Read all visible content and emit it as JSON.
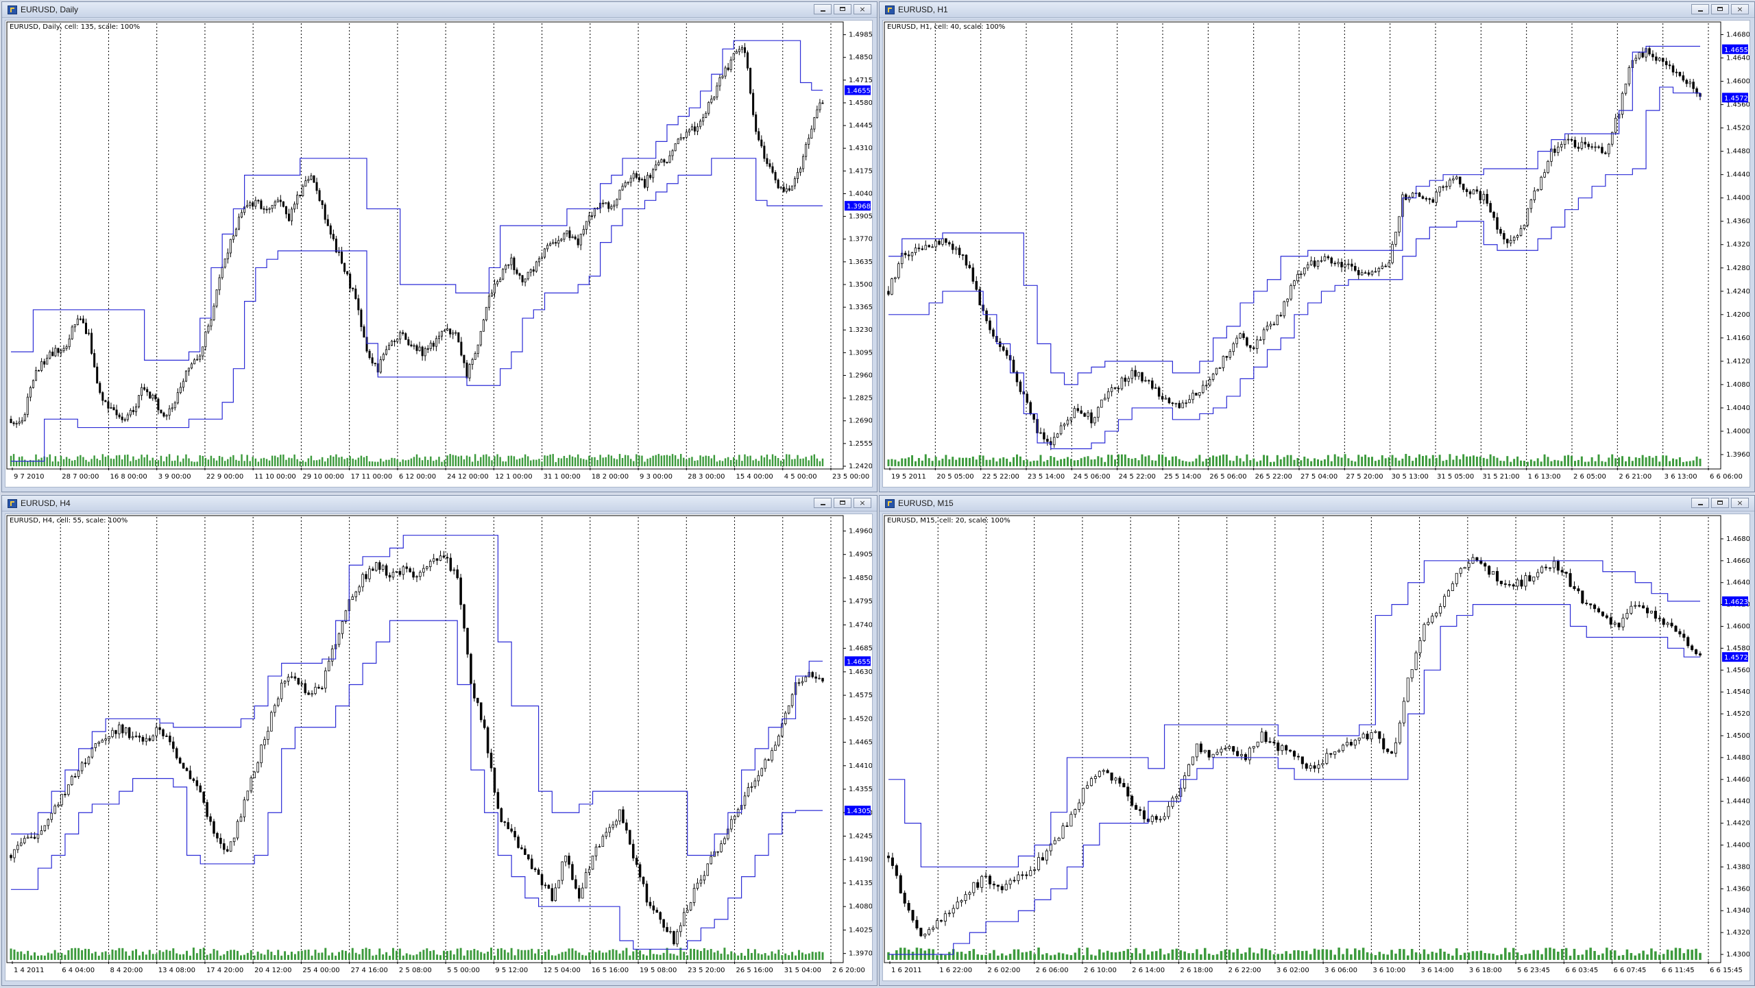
{
  "windows": [
    {
      "id": "daily",
      "title": "EURUSD, Daily",
      "info": "EURUSD, Daily, cell: 135, scale: 100%",
      "controls": {
        "minimize": "minimize",
        "restore": "restore",
        "close": "×"
      }
    },
    {
      "id": "h1",
      "title": "EURUSD, H1",
      "info": "EURUSD, H1, cell: 40, scale: 100%",
      "controls": {
        "minimize": "minimize",
        "restore": "restore",
        "close": "×"
      }
    },
    {
      "id": "h4",
      "title": "EURUSD, H4",
      "info": "EURUSD, H4, cell: 55, scale: 100%",
      "controls": {
        "minimize": "minimize",
        "restore": "restore",
        "close": "×"
      }
    },
    {
      "id": "m15",
      "title": "EURUSD, M15",
      "info": "EURUSD, M15, cell: 20, scale: 100%",
      "controls": {
        "minimize": "minimize",
        "restore": "restore",
        "close": "×"
      }
    }
  ],
  "chart_data": [
    {
      "type": "candlestick",
      "title": "EURUSD, Daily",
      "ylim": [
        1.242,
        1.502
      ],
      "y_ticks": [
        "1.4985",
        "1.4850",
        "1.4715",
        "1.4580",
        "1.4445",
        "1.4310",
        "1.4175",
        "1.4040",
        "1.3905",
        "1.3770",
        "1.3635",
        "1.3500",
        "1.3365",
        "1.3230",
        "1.3095",
        "1.2960",
        "1.2825",
        "1.2690",
        "1.2555",
        "1.2420"
      ],
      "x_ticks": [
        "9 7 2010",
        "28 7 00:00",
        "16 8 00:00",
        "3 9 00:00",
        "22 9 00:00",
        "11 10 00:00",
        "29 10 00:00",
        "17 11 00:00",
        "6 12 00:00",
        "24 12 00:00",
        "12 1 00:00",
        "31 1 00:00",
        "18 2 00:00",
        "9 3 00:00",
        "28 3 00:00",
        "15 4 00:00",
        "4 5 00:00",
        "23 5 00:00"
      ],
      "price_labels": [
        {
          "value": "1.4655",
          "color": "#0000ff"
        },
        {
          "value": "1.3968",
          "color": "#0000ff"
        }
      ],
      "price_label_levels": [
        1.4655,
        1.3968
      ],
      "close_path": [
        1.27,
        1.268,
        1.295,
        1.305,
        1.31,
        1.315,
        1.33,
        1.32,
        1.285,
        1.275,
        1.268,
        1.275,
        1.29,
        1.28,
        1.27,
        1.285,
        1.3,
        1.31,
        1.33,
        1.36,
        1.38,
        1.395,
        1.4,
        1.395,
        1.4,
        1.39,
        1.405,
        1.415,
        1.395,
        1.375,
        1.36,
        1.34,
        1.31,
        1.3,
        1.315,
        1.32,
        1.315,
        1.31,
        1.315,
        1.325,
        1.32,
        1.295,
        1.315,
        1.345,
        1.355,
        1.365,
        1.35,
        1.36,
        1.37,
        1.375,
        1.38,
        1.375,
        1.39,
        1.4,
        1.395,
        1.41,
        1.415,
        1.41,
        1.42,
        1.425,
        1.435,
        1.44,
        1.445,
        1.46,
        1.475,
        1.485,
        1.49,
        1.44,
        1.42,
        1.41,
        1.405,
        1.42,
        1.445,
        1.46
      ],
      "channel_upper": [
        1.31,
        1.31,
        1.335,
        1.335,
        1.335,
        1.335,
        1.335,
        1.335,
        1.335,
        1.335,
        1.335,
        1.335,
        1.305,
        1.305,
        1.305,
        1.305,
        1.31,
        1.33,
        1.36,
        1.38,
        1.395,
        1.415,
        1.415,
        1.415,
        1.415,
        1.415,
        1.425,
        1.425,
        1.425,
        1.425,
        1.425,
        1.425,
        1.395,
        1.395,
        1.395,
        1.35,
        1.35,
        1.35,
        1.35,
        1.35,
        1.345,
        1.345,
        1.345,
        1.36,
        1.385,
        1.385,
        1.385,
        1.385,
        1.385,
        1.385,
        1.395,
        1.395,
        1.395,
        1.41,
        1.415,
        1.425,
        1.425,
        1.425,
        1.435,
        1.445,
        1.45,
        1.455,
        1.465,
        1.475,
        1.49,
        1.495,
        1.495,
        1.495,
        1.495,
        1.495,
        1.495,
        1.47,
        1.4655,
        1.4655
      ],
      "channel_lower": [
        1.245,
        1.245,
        1.245,
        1.27,
        1.27,
        1.27,
        1.265,
        1.265,
        1.265,
        1.265,
        1.265,
        1.265,
        1.265,
        1.265,
        1.265,
        1.265,
        1.27,
        1.27,
        1.27,
        1.28,
        1.3,
        1.34,
        1.36,
        1.365,
        1.37,
        1.37,
        1.37,
        1.37,
        1.37,
        1.37,
        1.37,
        1.37,
        1.315,
        1.295,
        1.295,
        1.295,
        1.295,
        1.295,
        1.295,
        1.295,
        1.295,
        1.29,
        1.29,
        1.29,
        1.3,
        1.31,
        1.33,
        1.335,
        1.345,
        1.345,
        1.345,
        1.35,
        1.355,
        1.375,
        1.385,
        1.395,
        1.395,
        1.4,
        1.405,
        1.41,
        1.415,
        1.415,
        1.415,
        1.425,
        1.425,
        1.425,
        1.425,
        1.4,
        1.3968,
        1.3968,
        1.3968,
        1.3968,
        1.3968,
        1.3968
      ]
    },
    {
      "type": "candlestick",
      "title": "EURUSD, H1",
      "ylim": [
        1.394,
        1.469
      ],
      "y_ticks": [
        "1.4680",
        "1.4640",
        "1.4600",
        "1.4560",
        "1.4520",
        "1.4480",
        "1.4440",
        "1.4400",
        "1.4360",
        "1.4320",
        "1.4280",
        "1.4240",
        "1.4200",
        "1.4160",
        "1.4120",
        "1.4080",
        "1.4040",
        "1.4000",
        "1.3960"
      ],
      "x_ticks": [
        "19 5 2011",
        "20 5 05:00",
        "22 5 22:00",
        "23 5 14:00",
        "24 5 06:00",
        "24 5 22:00",
        "25 5 14:00",
        "26 5 06:00",
        "26 5 22:00",
        "27 5 04:00",
        "27 5 20:00",
        "30 5 13:00",
        "31 5 05:00",
        "31 5 21:00",
        "1 6 13:00",
        "2 6 05:00",
        "2 6 21:00",
        "3 6 13:00",
        "6 6 06:00"
      ],
      "price_labels": [
        {
          "value": "1.4655",
          "color": "#0000ff"
        },
        {
          "value": "1.4572",
          "color": "#0000ff"
        }
      ],
      "price_label_levels": [
        1.4655,
        1.4572
      ],
      "close_path": [
        1.424,
        1.43,
        1.431,
        1.432,
        1.433,
        1.431,
        1.428,
        1.42,
        1.415,
        1.412,
        1.406,
        1.4,
        1.398,
        1.401,
        1.404,
        1.402,
        1.406,
        1.408,
        1.41,
        1.409,
        1.406,
        1.404,
        1.405,
        1.407,
        1.41,
        1.413,
        1.416,
        1.414,
        1.418,
        1.42,
        1.426,
        1.428,
        1.43,
        1.429,
        1.428,
        1.427,
        1.428,
        1.429,
        1.44,
        1.441,
        1.439,
        1.442,
        1.443,
        1.441,
        1.44,
        1.435,
        1.432,
        1.436,
        1.442,
        1.448,
        1.45,
        1.449,
        1.449,
        1.447,
        1.455,
        1.464,
        1.465,
        1.464,
        1.462,
        1.46,
        1.458
      ],
      "channel_upper": [
        1.43,
        1.433,
        1.433,
        1.433,
        1.434,
        1.434,
        1.434,
        1.434,
        1.434,
        1.434,
        1.425,
        1.415,
        1.41,
        1.408,
        1.41,
        1.411,
        1.412,
        1.412,
        1.412,
        1.412,
        1.412,
        1.41,
        1.41,
        1.412,
        1.416,
        1.418,
        1.422,
        1.424,
        1.426,
        1.43,
        1.43,
        1.431,
        1.431,
        1.431,
        1.431,
        1.431,
        1.431,
        1.431,
        1.44,
        1.442,
        1.443,
        1.444,
        1.444,
        1.444,
        1.445,
        1.445,
        1.445,
        1.445,
        1.448,
        1.45,
        1.451,
        1.451,
        1.451,
        1.451,
        1.455,
        1.465,
        1.466,
        1.466,
        1.466,
        1.466,
        1.466
      ],
      "channel_lower": [
        1.42,
        1.42,
        1.42,
        1.422,
        1.424,
        1.424,
        1.424,
        1.42,
        1.415,
        1.41,
        1.403,
        1.398,
        1.397,
        1.397,
        1.397,
        1.398,
        1.4,
        1.402,
        1.404,
        1.404,
        1.404,
        1.402,
        1.402,
        1.403,
        1.404,
        1.406,
        1.409,
        1.411,
        1.414,
        1.416,
        1.42,
        1.422,
        1.424,
        1.425,
        1.426,
        1.426,
        1.426,
        1.426,
        1.43,
        1.433,
        1.435,
        1.435,
        1.436,
        1.436,
        1.432,
        1.431,
        1.431,
        1.431,
        1.433,
        1.435,
        1.438,
        1.44,
        1.442,
        1.444,
        1.444,
        1.445,
        1.455,
        1.459,
        1.458,
        1.458,
        1.4572
      ]
    },
    {
      "type": "candlestick",
      "title": "EURUSD, H4",
      "ylim": [
        1.3955,
        1.498
      ],
      "y_ticks": [
        "1.4960",
        "1.4905",
        "1.4850",
        "1.4795",
        "1.4740",
        "1.4685",
        "1.4630",
        "1.4575",
        "1.4520",
        "1.4465",
        "1.4410",
        "1.4355",
        "1.4300",
        "1.4245",
        "1.4190",
        "1.4135",
        "1.4080",
        "1.4025",
        "1.3970"
      ],
      "x_ticks": [
        "1 4 2011",
        "6 4 04:00",
        "8 4 20:00",
        "13 4 08:00",
        "17 4 20:00",
        "20 4 12:00",
        "25 4 00:00",
        "27 4 16:00",
        "2 5 08:00",
        "5 5 00:00",
        "9 5 12:00",
        "12 5 04:00",
        "16 5 16:00",
        "19 5 08:00",
        "23 5 20:00",
        "26 5 16:00",
        "31 5 04:00",
        "2 6 20:00"
      ],
      "price_labels": [
        {
          "value": "1.4655",
          "color": "#0000ff"
        },
        {
          "value": "1.4305",
          "color": "#0000ff"
        }
      ],
      "price_label_levels": [
        1.4655,
        1.4305
      ],
      "close_path": [
        1.42,
        1.423,
        1.425,
        1.43,
        1.435,
        1.44,
        1.445,
        1.448,
        1.45,
        1.448,
        1.447,
        1.45,
        1.445,
        1.44,
        1.435,
        1.425,
        1.42,
        1.43,
        1.44,
        1.45,
        1.46,
        1.462,
        1.458,
        1.46,
        1.47,
        1.48,
        1.485,
        1.488,
        1.486,
        1.487,
        1.485,
        1.488,
        1.49,
        1.485,
        1.46,
        1.45,
        1.43,
        1.425,
        1.42,
        1.415,
        1.41,
        1.42,
        1.41,
        1.42,
        1.425,
        1.43,
        1.42,
        1.41,
        1.405,
        1.4,
        1.408,
        1.415,
        1.42,
        1.426,
        1.432,
        1.438,
        1.443,
        1.45,
        1.46,
        1.463,
        1.461
      ],
      "channel_upper": [
        1.425,
        1.425,
        1.43,
        1.435,
        1.44,
        1.445,
        1.449,
        1.452,
        1.452,
        1.452,
        1.452,
        1.451,
        1.45,
        1.45,
        1.45,
        1.45,
        1.45,
        1.452,
        1.455,
        1.462,
        1.465,
        1.465,
        1.465,
        1.466,
        1.475,
        1.488,
        1.49,
        1.49,
        1.492,
        1.495,
        1.495,
        1.495,
        1.495,
        1.495,
        1.495,
        1.495,
        1.47,
        1.455,
        1.455,
        1.435,
        1.43,
        1.43,
        1.432,
        1.435,
        1.435,
        1.435,
        1.435,
        1.435,
        1.435,
        1.435,
        1.42,
        1.42,
        1.425,
        1.43,
        1.44,
        1.445,
        1.45,
        1.452,
        1.462,
        1.4655,
        1.4655
      ],
      "channel_lower": [
        1.412,
        1.412,
        1.417,
        1.42,
        1.425,
        1.43,
        1.432,
        1.432,
        1.435,
        1.438,
        1.438,
        1.438,
        1.436,
        1.42,
        1.418,
        1.418,
        1.418,
        1.418,
        1.42,
        1.43,
        1.445,
        1.45,
        1.45,
        1.45,
        1.455,
        1.46,
        1.465,
        1.47,
        1.475,
        1.475,
        1.475,
        1.475,
        1.475,
        1.46,
        1.44,
        1.43,
        1.42,
        1.415,
        1.41,
        1.408,
        1.408,
        1.408,
        1.408,
        1.408,
        1.408,
        1.4,
        1.398,
        1.398,
        1.398,
        1.398,
        1.4,
        1.403,
        1.405,
        1.41,
        1.415,
        1.42,
        1.425,
        1.43,
        1.4305,
        1.4305,
        1.4305
      ]
    },
    {
      "type": "candlestick",
      "title": "EURUSD, M15",
      "ylim": [
        1.4295,
        1.4695
      ],
      "y_ticks": [
        "1.4680",
        "1.4660",
        "1.4640",
        "1.4620",
        "1.4600",
        "1.4580",
        "1.4560",
        "1.4540",
        "1.4520",
        "1.4500",
        "1.4480",
        "1.4460",
        "1.4440",
        "1.4420",
        "1.4400",
        "1.4380",
        "1.4360",
        "1.4340",
        "1.4320",
        "1.4300"
      ],
      "x_ticks": [
        "1 6 2011",
        "1 6 22:00",
        "2 6 02:00",
        "2 6 06:00",
        "2 6 10:00",
        "2 6 14:00",
        "2 6 18:00",
        "2 6 22:00",
        "3 6 02:00",
        "3 6 06:00",
        "3 6 10:00",
        "3 6 14:00",
        "3 6 18:00",
        "5 6 23:45",
        "6 6 03:45",
        "6 6 07:45",
        "6 6 11:45",
        "6 6 15:45"
      ],
      "price_labels": [
        {
          "value": "1.4623",
          "color": "#0000ff"
        },
        {
          "value": "1.4572",
          "color": "#0000ff"
        }
      ],
      "price_label_levels": [
        1.4623,
        1.4572
      ],
      "close_path": [
        1.439,
        1.435,
        1.432,
        1.433,
        1.434,
        1.436,
        1.437,
        1.436,
        1.437,
        1.438,
        1.44,
        1.442,
        1.445,
        1.447,
        1.446,
        1.444,
        1.442,
        1.443,
        1.445,
        1.449,
        1.448,
        1.449,
        1.448,
        1.45,
        1.449,
        1.448,
        1.447,
        1.448,
        1.449,
        1.45,
        1.45,
        1.448,
        1.455,
        1.46,
        1.462,
        1.465,
        1.466,
        1.465,
        1.464,
        1.464,
        1.465,
        1.466,
        1.464,
        1.462,
        1.461,
        1.46,
        1.462,
        1.461,
        1.46,
        1.459,
        1.4572
      ],
      "channel_upper": [
        1.446,
        1.442,
        1.438,
        1.438,
        1.438,
        1.438,
        1.438,
        1.438,
        1.439,
        1.44,
        1.443,
        1.448,
        1.448,
        1.448,
        1.448,
        1.448,
        1.447,
        1.451,
        1.451,
        1.451,
        1.451,
        1.451,
        1.451,
        1.451,
        1.45,
        1.45,
        1.45,
        1.45,
        1.45,
        1.451,
        1.461,
        1.462,
        1.464,
        1.466,
        1.466,
        1.466,
        1.466,
        1.466,
        1.466,
        1.466,
        1.466,
        1.466,
        1.466,
        1.466,
        1.465,
        1.465,
        1.464,
        1.463,
        1.4623,
        1.4623,
        1.4623
      ],
      "channel_lower": [
        1.43,
        1.43,
        1.43,
        1.43,
        1.431,
        1.432,
        1.433,
        1.433,
        1.434,
        1.435,
        1.436,
        1.438,
        1.44,
        1.442,
        1.442,
        1.442,
        1.444,
        1.444,
        1.446,
        1.447,
        1.448,
        1.448,
        1.448,
        1.448,
        1.447,
        1.446,
        1.446,
        1.446,
        1.446,
        1.446,
        1.446,
        1.446,
        1.452,
        1.456,
        1.46,
        1.461,
        1.462,
        1.462,
        1.462,
        1.462,
        1.462,
        1.462,
        1.46,
        1.459,
        1.459,
        1.459,
        1.459,
        1.459,
        1.458,
        1.4572,
        1.4572
      ]
    }
  ]
}
